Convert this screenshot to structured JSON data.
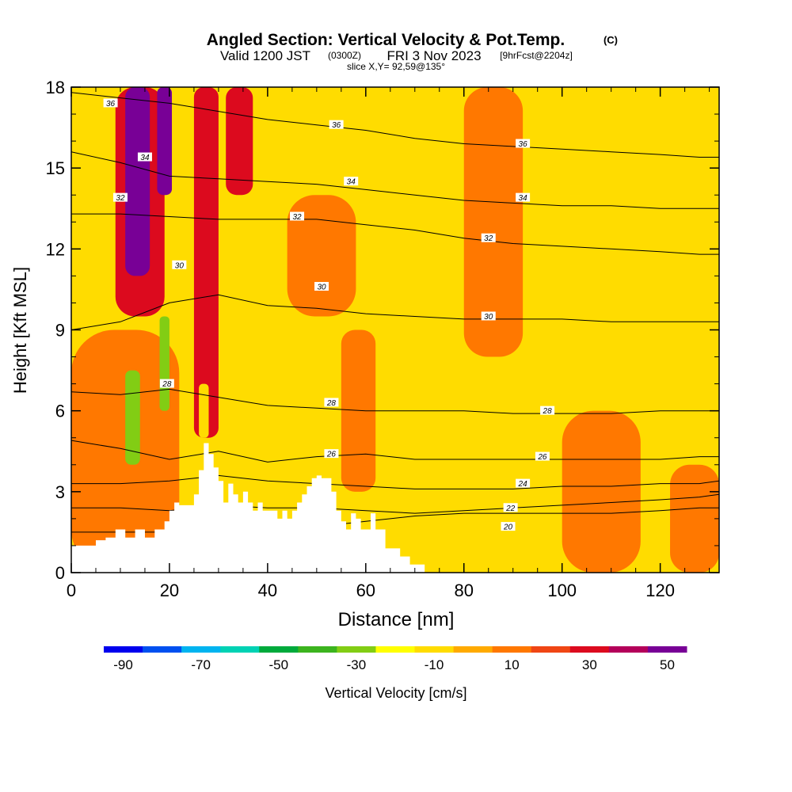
{
  "chart_data": {
    "type": "heatmap",
    "title": "Angled Section: Vertical Velocity & Pot.Temp.",
    "title_mark": "(C)",
    "subtitle": {
      "valid_prefix": "Valid 1200 JST",
      "valid_utc": "(0300Z)",
      "valid_date": "FRI 3 Nov 2023",
      "forecast": "[9hrFcst@2204z]"
    },
    "slice_label": "slice X,Y= 92,59@135°",
    "xlabel": "Distance [nm]",
    "ylabel": "Height [Kft MSL]",
    "xlim": [
      0,
      132
    ],
    "ylim": [
      0,
      18
    ],
    "x_ticks": [
      "0",
      "20",
      "40",
      "60",
      "80",
      "100",
      "120"
    ],
    "y_ticks": [
      "0",
      "3",
      "6",
      "9",
      "12",
      "15",
      "18"
    ],
    "colorbar": {
      "label": "Vertical Velocity [cm/s]",
      "tick_labels": [
        "-90",
        "-70",
        "-50",
        "-30",
        "-10",
        "10",
        "30",
        "50"
      ],
      "colors": [
        "#0000ee",
        "#0050f0",
        "#00b4f0",
        "#00d2b4",
        "#00aa3c",
        "#3cb41e",
        "#82cd14",
        "#ffff00",
        "#ffdc00",
        "#ffaa00",
        "#ff7800",
        "#f04614",
        "#dc0a1e",
        "#b4005a",
        "#780096"
      ]
    },
    "background_color": "#ffdc00",
    "velocity_regions": [
      {
        "x": [
          9,
          19
        ],
        "y": [
          9.5,
          18
        ],
        "w": 30
      },
      {
        "x": [
          11,
          16
        ],
        "y": [
          11,
          18
        ],
        "w": 50
      },
      {
        "x": [
          17.5,
          20.5
        ],
        "y": [
          14,
          18
        ],
        "w": 50
      },
      {
        "x": [
          25,
          30
        ],
        "y": [
          5,
          18
        ],
        "w": 30
      },
      {
        "x": [
          31.5,
          37
        ],
        "y": [
          14,
          18
        ],
        "w": 30
      },
      {
        "x": [
          0,
          22
        ],
        "y": [
          0,
          9
        ],
        "w": 10
      },
      {
        "x": [
          44,
          58
        ],
        "y": [
          9.5,
          14
        ],
        "w": 10
      },
      {
        "x": [
          55,
          62
        ],
        "y": [
          3,
          9
        ],
        "w": 10
      },
      {
        "x": [
          80,
          92
        ],
        "y": [
          8,
          18
        ],
        "w": 10
      },
      {
        "x": [
          100,
          116
        ],
        "y": [
          0,
          6
        ],
        "w": 10
      },
      {
        "x": [
          122,
          132
        ],
        "y": [
          0,
          4
        ],
        "w": 10
      },
      {
        "x": [
          11,
          14
        ],
        "y": [
          4,
          7.5
        ],
        "w": -30
      },
      {
        "x": [
          18,
          20
        ],
        "y": [
          6,
          9.5
        ],
        "w": -30
      },
      {
        "x": [
          51,
          53
        ],
        "y": [
          4.5,
          6.5
        ],
        "w": -10
      },
      {
        "x": [
          26,
          28
        ],
        "y": [
          5,
          7
        ],
        "w": -10
      }
    ],
    "isentropes": [
      {
        "theta": 20,
        "y": [
          1.5,
          1.5,
          1.5,
          1.5,
          1.5,
          1.7,
          1.9,
          2.1,
          2.2,
          2.2,
          2.2,
          2.2,
          2.3,
          2.4,
          2.4
        ]
      },
      {
        "theta": 22,
        "y": [
          2.4,
          2.4,
          2.3,
          2.5,
          2.4,
          2.4,
          2.3,
          2.2,
          2.3,
          2.4,
          2.5,
          2.6,
          2.7,
          2.8,
          2.9
        ]
      },
      {
        "theta": 24,
        "y": [
          3.3,
          3.3,
          3.4,
          3.6,
          3.4,
          3.3,
          3.2,
          3.1,
          3.1,
          3.1,
          3.2,
          3.2,
          3.3,
          3.3,
          3.4
        ]
      },
      {
        "theta": 26,
        "y": [
          4.9,
          4.6,
          4.2,
          4.5,
          4.1,
          4.3,
          4.4,
          4.2,
          4.2,
          4.2,
          4.2,
          4.2,
          4.2,
          4.3,
          4.3
        ]
      },
      {
        "theta": 28,
        "y": [
          6.7,
          6.6,
          6.8,
          6.5,
          6.2,
          6.1,
          6.0,
          6.0,
          6.0,
          5.9,
          5.9,
          5.9,
          6.0,
          6.0,
          6.0
        ]
      },
      {
        "theta": 30,
        "y": [
          9.0,
          9.3,
          10.0,
          10.3,
          9.9,
          9.8,
          9.6,
          9.5,
          9.4,
          9.4,
          9.4,
          9.3,
          9.3,
          9.3,
          9.3
        ]
      },
      {
        "theta": 32,
        "y": [
          13.3,
          13.3,
          13.2,
          13.1,
          13.1,
          13.1,
          12.9,
          12.7,
          12.4,
          12.2,
          12.1,
          12.0,
          11.9,
          11.8,
          11.8
        ]
      },
      {
        "theta": 34,
        "y": [
          15.6,
          15.2,
          14.7,
          14.6,
          14.5,
          14.4,
          14.2,
          14.0,
          13.8,
          13.7,
          13.6,
          13.6,
          13.5,
          13.5,
          13.5
        ]
      },
      {
        "theta": 36,
        "y": [
          17.8,
          17.6,
          17.4,
          17.1,
          16.8,
          16.6,
          16.4,
          16.1,
          15.9,
          15.8,
          15.7,
          15.6,
          15.5,
          15.4,
          15.4
        ]
      }
    ],
    "isentrope_x": [
      0,
      10,
      20,
      30,
      40,
      50,
      60,
      70,
      80,
      90,
      100,
      110,
      120,
      128,
      132
    ],
    "isentrope_labels": [
      {
        "text": "36",
        "x": 8,
        "y": 17.4
      },
      {
        "text": "36",
        "x": 54,
        "y": 16.6
      },
      {
        "text": "36",
        "x": 92,
        "y": 15.9
      },
      {
        "text": "34",
        "x": 15,
        "y": 15.4
      },
      {
        "text": "34",
        "x": 57,
        "y": 14.5
      },
      {
        "text": "34",
        "x": 92,
        "y": 13.9
      },
      {
        "text": "32",
        "x": 10,
        "y": 13.9
      },
      {
        "text": "32",
        "x": 46,
        "y": 13.2
      },
      {
        "text": "32",
        "x": 85,
        "y": 12.4
      },
      {
        "text": "30",
        "x": 22,
        "y": 11.4
      },
      {
        "text": "30",
        "x": 51,
        "y": 10.6
      },
      {
        "text": "30",
        "x": 85,
        "y": 9.5
      },
      {
        "text": "28",
        "x": 19.5,
        "y": 7.0
      },
      {
        "text": "28",
        "x": 53,
        "y": 6.3
      },
      {
        "text": "28",
        "x": 97,
        "y": 6.0
      },
      {
        "text": "26",
        "x": 53,
        "y": 4.4
      },
      {
        "text": "26",
        "x": 96,
        "y": 4.3
      },
      {
        "text": "24",
        "x": 92,
        "y": 3.3
      },
      {
        "text": "22",
        "x": 89.5,
        "y": 2.4
      },
      {
        "text": "20",
        "x": 89,
        "y": 1.7
      }
    ],
    "terrain": {
      "x": [
        0,
        5,
        5,
        7,
        7,
        9,
        9,
        11,
        11,
        13,
        13,
        15,
        15,
        17,
        17,
        19,
        19,
        20,
        20,
        21,
        21,
        22,
        22,
        25,
        25,
        26,
        26,
        27,
        27,
        28,
        28,
        29,
        29,
        30,
        30,
        31,
        31,
        32,
        32,
        33,
        33,
        34,
        34,
        35,
        35,
        36,
        36,
        37,
        37,
        38,
        38,
        39,
        39,
        42,
        42,
        43,
        43,
        44,
        44,
        45,
        45,
        46,
        46,
        47,
        47,
        48,
        48,
        49,
        49,
        50,
        50,
        51,
        51,
        53,
        53,
        54,
        54,
        55,
        55,
        56,
        56,
        57,
        57,
        58,
        58,
        59,
        59,
        61,
        61,
        62,
        62,
        64,
        64,
        67,
        67,
        69,
        69,
        72,
        72,
        132
      ],
      "y": [
        1.0,
        1.0,
        1.2,
        1.2,
        1.3,
        1.3,
        1.6,
        1.6,
        1.3,
        1.3,
        1.6,
        1.6,
        1.3,
        1.3,
        1.6,
        1.6,
        1.9,
        1.9,
        2.3,
        2.3,
        2.6,
        2.6,
        2.5,
        2.5,
        2.9,
        2.9,
        3.8,
        3.8,
        4.8,
        4.8,
        4.4,
        4.4,
        3.9,
        3.9,
        3.4,
        3.4,
        2.6,
        2.6,
        3.3,
        3.3,
        2.9,
        2.9,
        2.6,
        2.6,
        3.0,
        3.0,
        2.6,
        2.6,
        2.3,
        2.3,
        2.6,
        2.6,
        2.3,
        2.3,
        2.0,
        2.0,
        2.3,
        2.3,
        2.0,
        2.0,
        2.3,
        2.3,
        2.6,
        2.6,
        2.9,
        2.9,
        3.2,
        3.2,
        3.5,
        3.5,
        3.6,
        3.6,
        3.5,
        3.5,
        3.0,
        3.0,
        2.3,
        2.3,
        1.9,
        1.9,
        1.6,
        1.6,
        2.2,
        2.2,
        2.0,
        2.0,
        1.6,
        1.6,
        2.2,
        2.2,
        1.6,
        1.6,
        0.9,
        0.9,
        0.6,
        0.6,
        0.3,
        0.3,
        0,
        0
      ]
    }
  }
}
